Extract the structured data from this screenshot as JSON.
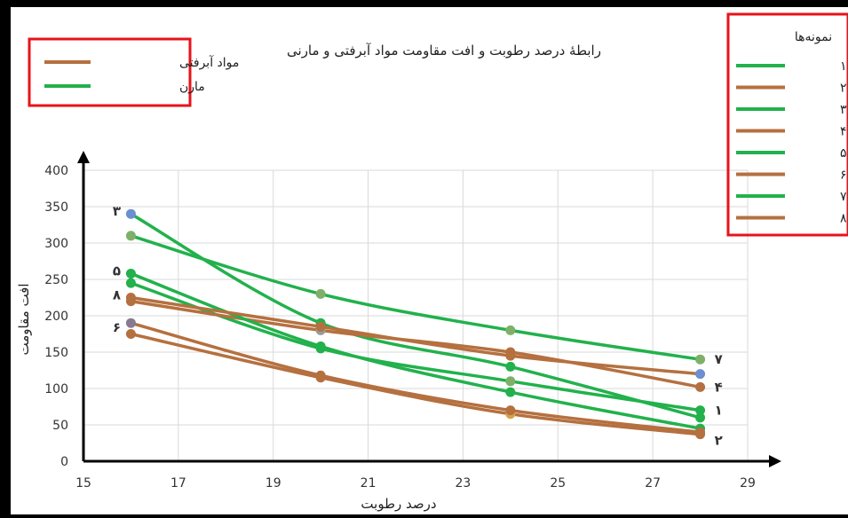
{
  "chart_data": {
    "type": "line",
    "title": "رابطهٔ درصد رطوبت و افت مقاومت مواد آبرفتی و مارنی",
    "xlabel": "درصد رطوبت",
    "ylabel": "افت مقاومت",
    "xlim": [
      15,
      29
    ],
    "ylim": [
      0,
      400
    ],
    "x_ticks": [
      "15",
      "17",
      "19",
      "21",
      "23",
      "25",
      "27",
      "29"
    ],
    "y_ticks": [
      "0",
      "50",
      "100",
      "150",
      "200",
      "250",
      "300",
      "350",
      "400"
    ],
    "grid": true,
    "x": [
      16,
      20,
      24,
      28
    ],
    "legend_material": {
      "placement": "top-left",
      "entries": [
        {
          "label": "مواد آبرفتی",
          "color": "#b5703f"
        },
        {
          "label": "مارن",
          "color": "#22b14c"
        }
      ]
    },
    "legend_points": {
      "title": "نمونه‌ها",
      "placement": "top-right"
    },
    "series": [
      {
        "name": "نقطهٔ ۱",
        "color": "#22b14c",
        "values": [
          245,
          155,
          110,
          70
        ],
        "end_label": "۱",
        "marker_colors": [
          "#22b14c",
          "#22b14c",
          "#7fb069",
          "#22b14c"
        ]
      },
      {
        "name": "نقطهٔ ۲",
        "color": "#b5703f",
        "values": [
          175,
          115,
          65,
          37
        ],
        "end_label": "۲",
        "marker_colors": [
          "#b5703f",
          "#b5703f",
          "#d4a44a",
          "#b5703f"
        ]
      },
      {
        "name": "نقطهٔ ۳",
        "color": "#22b14c",
        "values": [
          340,
          190,
          130,
          60
        ],
        "end_label": "۳",
        "marker_colors": [
          "#6b8fd0",
          "#22b14c",
          "#22b14c",
          "#22b14c"
        ]
      },
      {
        "name": "نقطهٔ ۴",
        "color": "#b5703f",
        "values": [
          220,
          180,
          150,
          102
        ],
        "end_label": "۴",
        "marker_colors": [
          "#b5703f",
          "#9a9a9a",
          "#b5703f",
          "#b5703f"
        ]
      },
      {
        "name": "نقطهٔ ۵",
        "color": "#22b14c",
        "values": [
          258,
          158,
          95,
          45
        ],
        "end_label": "۵",
        "marker_colors": [
          "#22b14c",
          "#22b14c",
          "#22b14c",
          "#22b14c"
        ]
      },
      {
        "name": "نقطهٔ ۶",
        "color": "#b5703f",
        "values": [
          190,
          118,
          70,
          40
        ],
        "end_label": "۶",
        "marker_colors": [
          "#8a7a90",
          "#b5703f",
          "#b5703f",
          "#b5703f"
        ]
      },
      {
        "name": "نقطهٔ ۷",
        "color": "#22b14c",
        "values": [
          310,
          230,
          180,
          140
        ],
        "end_label": "۷",
        "marker_colors": [
          "#7fb069",
          "#7fb069",
          "#7fb069",
          "#7fb069"
        ]
      },
      {
        "name": "نقطهٔ ۸",
        "color": "#b5703f",
        "values": [
          225,
          185,
          145,
          120
        ],
        "end_label": "۸",
        "marker_colors": [
          "#b5703f",
          "#b5703f",
          "#b5703f",
          "#6b8fd0"
        ]
      }
    ]
  }
}
